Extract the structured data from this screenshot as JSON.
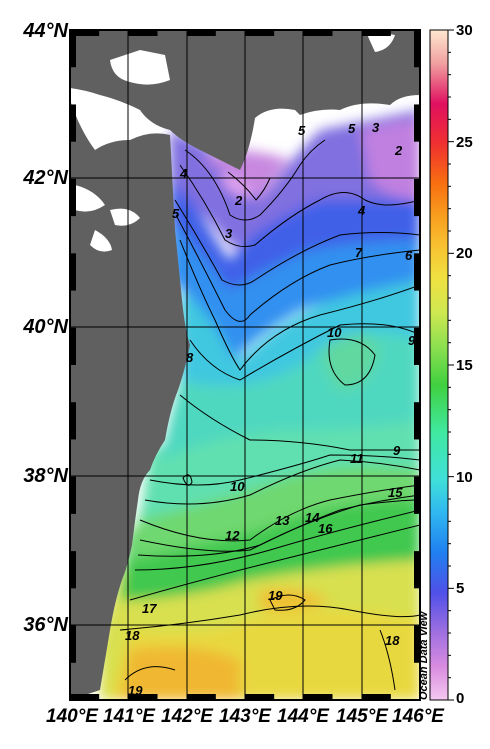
{
  "map": {
    "latitude_labels": [
      "44°N",
      "42°N",
      "40°N",
      "38°N",
      "36°N"
    ],
    "longitude_labels": [
      "140°E",
      "141°E",
      "142°E",
      "143°E",
      "144°E",
      "145°E",
      "146°E"
    ],
    "land_color": "#606060",
    "frame_color": "#000000"
  },
  "colorbar": {
    "ticks": [
      "30",
      "25",
      "20",
      "15",
      "10",
      "5",
      "0"
    ],
    "min": 0,
    "max": 30,
    "colors": [
      "#f5c8f0",
      "#d88ce0",
      "#a070e0",
      "#5050e8",
      "#2080f0",
      "#30b8f0",
      "#40e0d8",
      "#40e8a0",
      "#40d040",
      "#90e050",
      "#d0e850",
      "#f0e040",
      "#f8c030",
      "#f8a020",
      "#f87010",
      "#f03030",
      "#e01060",
      "#f0a0a0",
      "#ffe8d0"
    ]
  },
  "contour_labels": [
    "2",
    "2",
    "3",
    "3",
    "4",
    "4",
    "5",
    "5",
    "5",
    "6",
    "7",
    "8",
    "9",
    "9",
    "10",
    "10",
    "11",
    "12",
    "13",
    "14",
    "15",
    "16",
    "17",
    "18",
    "18",
    "19",
    "19"
  ],
  "watermark": "Ocean Data View"
}
